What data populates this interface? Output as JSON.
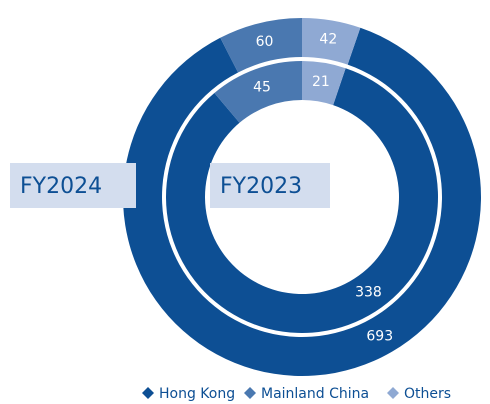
{
  "chart_data": {
    "type": "donut",
    "categories": [
      "Hong Kong",
      "Mainland China",
      "Others"
    ],
    "colors": [
      "#0d4f94",
      "#4a78b0",
      "#8fa9d3"
    ],
    "series": [
      {
        "name": "FY2024",
        "values": [
          693,
          60,
          42
        ]
      },
      {
        "name": "FY2023",
        "values": [
          338,
          45,
          21
        ]
      }
    ],
    "legend": "bottom"
  }
}
